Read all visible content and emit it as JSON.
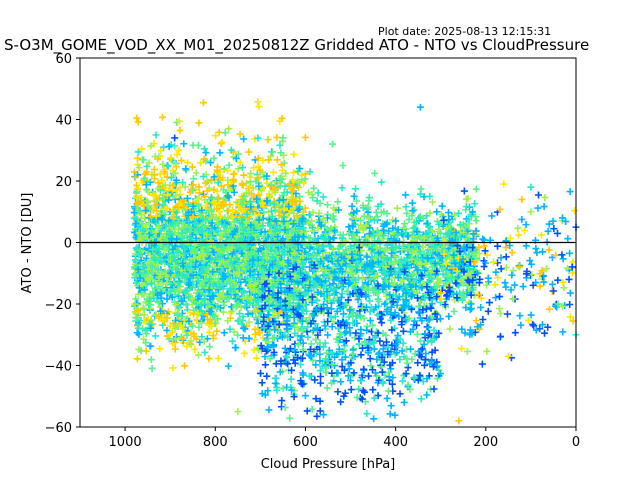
{
  "chart_data": {
    "type": "scatter",
    "title": "S-O3M_GOME_VOD_XX_M01_20250812Z Gridded ATO - NTO vs CloudPressure",
    "plot_date": "Plot date: 2025-08-13 12:15:31",
    "xlabel": "Cloud Pressure [hPa]",
    "ylabel": "ATO - NTO [DU]",
    "xlim": [
      1100,
      0
    ],
    "ylim": [
      -60,
      60
    ],
    "x_inverted": true,
    "x_ticks": [
      1000,
      800,
      600,
      400,
      200,
      0
    ],
    "y_ticks": [
      -60,
      -40,
      -20,
      0,
      20,
      40,
      60
    ],
    "x_tick_labels": [
      "1000",
      "800",
      "600",
      "400",
      "200",
      "0"
    ],
    "y_tick_labels": [
      "−60",
      "−40",
      "−20",
      "0",
      "20",
      "40",
      "60"
    ],
    "zero_line": 0,
    "marker": "+",
    "grid": false,
    "colors": [
      "#0050ff",
      "#00b4ff",
      "#28e6c8",
      "#5af08c",
      "#a0f050",
      "#ffc800",
      "#ffe600"
    ],
    "distribution_note_free": true,
    "clusters": [
      {
        "x_range": [
          980,
          220
        ],
        "y_center": -5,
        "y_spread": 13
      },
      {
        "x_range": [
          980,
          600
        ],
        "y_center": 0,
        "y_spread": 16
      },
      {
        "x_range": [
          700,
          300
        ],
        "y_center": -30,
        "y_spread": 12
      },
      {
        "x_range": [
          300,
          0
        ],
        "y_center": -10,
        "y_spread": 12
      }
    ],
    "outliers": [
      {
        "x": 345,
        "y": 44
      },
      {
        "x": 770,
        "y": 37
      },
      {
        "x": 890,
        "y": 34
      },
      {
        "x": 540,
        "y": 32
      },
      {
        "x": 160,
        "y": 19
      },
      {
        "x": 100,
        "y": 18
      },
      {
        "x": 120,
        "y": 14
      },
      {
        "x": 30,
        "y": 8
      },
      {
        "x": 100,
        "y": 10
      },
      {
        "x": 0,
        "y": 5
      },
      {
        "x": 40,
        "y": -20
      },
      {
        "x": 150,
        "y": -37
      },
      {
        "x": 0,
        "y": -30
      },
      {
        "x": 260,
        "y": -58
      },
      {
        "x": 560,
        "y": -56
      },
      {
        "x": 750,
        "y": -55
      }
    ]
  }
}
